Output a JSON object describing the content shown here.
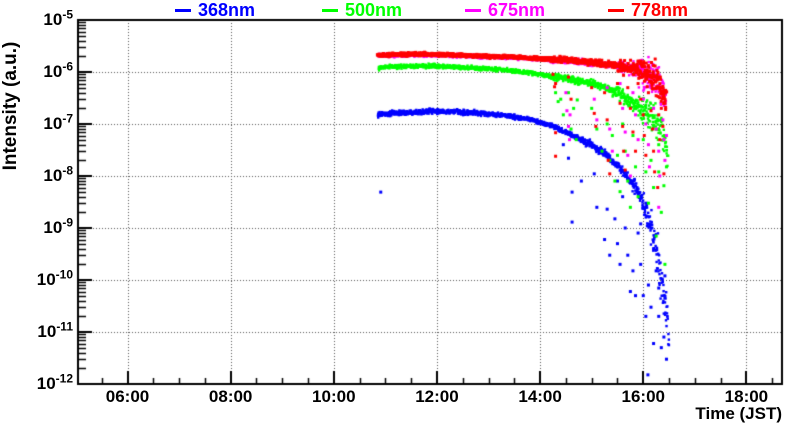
{
  "chart_data": {
    "type": "scatter",
    "title": "",
    "xlabel": "Time (JST)",
    "ylabel": "Intensity (a.u.)",
    "xlim_hours": [
      5.04,
      18.69
    ],
    "yscale": "log",
    "ylim": [
      1e-12,
      1e-05
    ],
    "grid": {
      "show": true,
      "style": "dotted",
      "color": "#555555"
    },
    "xticks": {
      "major_hours": [
        6,
        8,
        10,
        12,
        14,
        16,
        18
      ],
      "labels": [
        "06:00",
        "08:00",
        "10:00",
        "12:00",
        "14:00",
        "16:00",
        "18:00"
      ],
      "minor_step_hours": 0.5
    },
    "yticks": {
      "base": "10",
      "exponents": [
        -5,
        -6,
        -7,
        -8,
        -9,
        -10,
        -11,
        -12
      ]
    },
    "legend": {
      "position": "top",
      "entries": [
        {
          "label": "368nm",
          "color": "#0000ff"
        },
        {
          "label": "500nm",
          "color": "#00ff00"
        },
        {
          "label": "675nm",
          "color": "#ff00ff"
        },
        {
          "label": "778nm",
          "color": "#ff0000"
        }
      ]
    },
    "series": [
      {
        "name": "368nm",
        "color": "#0000ff",
        "curve": [
          [
            10.85,
            1.5e-07
          ],
          [
            11.2,
            1.62e-07
          ],
          [
            11.8,
            1.75e-07
          ],
          [
            12.3,
            1.72e-07
          ],
          [
            12.8,
            1.62e-07
          ],
          [
            13.3,
            1.47e-07
          ],
          [
            13.8,
            1.22e-07
          ],
          [
            14.2,
            9.5e-08
          ],
          [
            14.6,
            6.2e-08
          ],
          [
            15.0,
            4e-08
          ],
          [
            15.3,
            2.5e-08
          ],
          [
            15.6,
            1.25e-08
          ],
          [
            15.85,
            6e-09
          ],
          [
            16.0,
            3e-09
          ],
          [
            16.1,
            1.5e-09
          ],
          [
            16.2,
            6e-10
          ],
          [
            16.3,
            2e-10
          ],
          [
            16.38,
            7e-11
          ],
          [
            16.45,
            2e-11
          ],
          [
            16.5,
            6e-12
          ]
        ],
        "noise_log_sigma": [
          [
            0,
            0.022
          ],
          [
            14.8,
            0.035
          ],
          [
            15.8,
            0.07
          ],
          [
            16.0,
            0.12
          ],
          [
            16.15,
            0.2
          ]
        ],
        "scatter": [
          [
            10.91,
            4.9e-09
          ],
          [
            14.45,
            4e-08
          ],
          [
            14.55,
            2.2e-08
          ],
          [
            14.62,
            4.9e-09
          ],
          [
            14.62,
            1.3e-09
          ],
          [
            14.8,
            8e-09
          ],
          [
            15.05,
            1.1e-08
          ],
          [
            15.1,
            2.5e-09
          ],
          [
            15.25,
            6e-10
          ],
          [
            15.3,
            2.3e-09
          ],
          [
            15.35,
            3e-10
          ],
          [
            15.45,
            1.5e-09
          ],
          [
            15.5,
            8e-09
          ],
          [
            15.5,
            5e-10
          ],
          [
            15.55,
            2e-10
          ],
          [
            15.6,
            4e-09
          ],
          [
            15.65,
            1e-09
          ],
          [
            15.7,
            3e-10
          ],
          [
            15.75,
            6e-11
          ],
          [
            15.8,
            1.5e-10
          ],
          [
            15.85,
            5e-11
          ],
          [
            15.9,
            8e-10
          ],
          [
            15.95,
            1.2e-09
          ],
          [
            15.95,
            2e-10
          ],
          [
            16.0,
            5e-11
          ],
          [
            16.05,
            3e-09
          ],
          [
            16.05,
            2e-11
          ],
          [
            16.09,
            1.5e-12
          ],
          [
            16.1,
            8e-11
          ],
          [
            16.15,
            1e-09
          ],
          [
            16.15,
            3e-11
          ],
          [
            16.2,
            4e-10
          ],
          [
            16.2,
            6e-12
          ],
          [
            16.25,
            1.5e-10
          ],
          [
            16.3,
            7e-11
          ],
          [
            16.3,
            2e-11
          ],
          [
            16.35,
            5e-12
          ],
          [
            16.4,
            8e-12
          ],
          [
            16.42,
            1.2e-10
          ],
          [
            16.45,
            3e-12
          ]
        ]
      },
      {
        "name": "500nm",
        "color": "#00ff00",
        "curve": [
          [
            10.87,
            1.2e-06
          ],
          [
            11.3,
            1.28e-06
          ],
          [
            11.9,
            1.3e-06
          ],
          [
            12.4,
            1.25e-06
          ],
          [
            13.0,
            1.15e-06
          ],
          [
            13.5,
            1.05e-06
          ],
          [
            14.0,
            9e-07
          ],
          [
            14.5,
            7.5e-07
          ],
          [
            15.0,
            6e-07
          ],
          [
            15.3,
            4.9e-07
          ],
          [
            15.6,
            3.5e-07
          ],
          [
            15.9,
            2.2e-07
          ],
          [
            16.1,
            1.55e-07
          ],
          [
            16.3,
            9.5e-08
          ],
          [
            16.42,
            5e-08
          ],
          [
            16.48,
            2e-08
          ]
        ],
        "noise_log_sigma": [
          [
            0,
            0.018
          ],
          [
            14.2,
            0.03
          ],
          [
            15.4,
            0.06
          ],
          [
            15.9,
            0.13
          ]
        ],
        "scatter": [
          [
            14.3,
            4e-07
          ],
          [
            14.35,
            2.7e-07
          ],
          [
            14.4,
            3e-07
          ],
          [
            14.45,
            1.5e-07
          ],
          [
            14.55,
            4e-07
          ],
          [
            14.6,
            8e-08
          ],
          [
            14.65,
            2e-07
          ],
          [
            14.7,
            5e-08
          ],
          [
            14.72,
            2.9e-07
          ],
          [
            15.0,
            2e-07
          ],
          [
            15.1,
            8e-08
          ],
          [
            15.2,
            3e-08
          ],
          [
            15.3,
            1e-07
          ],
          [
            15.35,
            2e-08
          ],
          [
            15.4,
            6e-08
          ],
          [
            15.45,
            8e-09
          ],
          [
            15.5,
            2.5e-08
          ],
          [
            15.55,
            5e-09
          ],
          [
            15.6,
            1e-07
          ],
          [
            15.65,
            3e-08
          ],
          [
            15.7,
            8e-09
          ],
          [
            15.75,
            2.5e-09
          ],
          [
            15.8,
            6e-08
          ],
          [
            15.85,
            1.5e-08
          ],
          [
            15.9,
            4e-09
          ],
          [
            16.0,
            5e-08
          ],
          [
            16.05,
            1.2e-08
          ],
          [
            16.1,
            3e-09
          ],
          [
            16.15,
            2e-08
          ],
          [
            16.2,
            6e-09
          ],
          [
            16.25,
            7e-10
          ],
          [
            16.3,
            4e-08
          ],
          [
            16.3,
            1.2e-08
          ],
          [
            16.35,
            2e-09
          ],
          [
            16.4,
            6.5e-09
          ],
          [
            16.42,
            2e-10
          ],
          [
            16.45,
            1.5e-08
          ]
        ]
      },
      {
        "name": "675nm",
        "color": "#ff00ff",
        "curve": [
          [
            10.85,
            2.05e-06
          ],
          [
            11.5,
            2.14e-06
          ],
          [
            12.0,
            2.12e-06
          ],
          [
            12.5,
            2.05e-06
          ],
          [
            13.0,
            1.95e-06
          ],
          [
            13.5,
            1.87e-06
          ],
          [
            14.0,
            1.77e-06
          ],
          [
            14.5,
            1.65e-06
          ],
          [
            15.0,
            1.5e-06
          ],
          [
            15.3,
            1.38e-06
          ],
          [
            15.6,
            1.24e-06
          ],
          [
            15.9,
            1.07e-06
          ],
          [
            16.1,
            8.7e-07
          ],
          [
            16.25,
            6.8e-07
          ],
          [
            16.38,
            4.4e-07
          ],
          [
            16.45,
            2.7e-07
          ]
        ],
        "noise_log_sigma": [
          [
            0,
            0.015
          ],
          [
            14.2,
            0.025
          ],
          [
            15.5,
            0.06
          ],
          [
            15.9,
            0.15
          ]
        ],
        "scatter": [
          [
            14.5,
            4e-07
          ],
          [
            14.52,
            1.8e-07
          ],
          [
            14.55,
            9e-08
          ],
          [
            14.57,
            5e-08
          ],
          [
            14.58,
            1.5e-07
          ],
          [
            15.05,
            3e-07
          ],
          [
            15.1,
            1.2e-07
          ],
          [
            15.3,
            5e-07
          ],
          [
            15.35,
            8e-08
          ],
          [
            15.4,
            3e-08
          ],
          [
            15.55,
            6e-07
          ],
          [
            15.6,
            2e-07
          ],
          [
            15.65,
            7e-08
          ],
          [
            15.7,
            2.5e-08
          ],
          [
            15.75,
            1e-08
          ],
          [
            15.8,
            4e-07
          ],
          [
            15.85,
            1.5e-07
          ],
          [
            15.9,
            5e-08
          ],
          [
            15.95,
            9e-07
          ],
          [
            16.0,
            3e-07
          ],
          [
            16.05,
            1e-07
          ],
          [
            16.1,
            4e-08
          ],
          [
            16.12,
            1.5e-08
          ],
          [
            16.15,
            5e-07
          ],
          [
            16.2,
            2e-07
          ],
          [
            16.25,
            8e-08
          ],
          [
            16.3,
            3e-08
          ],
          [
            16.3,
            2.5e-09
          ],
          [
            16.32,
            1e-08
          ],
          [
            16.35,
            4e-07
          ],
          [
            16.38,
            1.2e-07
          ],
          [
            16.4,
            5e-08
          ],
          [
            16.42,
            2e-08
          ],
          [
            16.45,
            6e-08
          ]
        ]
      },
      {
        "name": "778nm",
        "color": "#ff0000",
        "curve": [
          [
            10.85,
            2.1e-06
          ],
          [
            11.5,
            2.2e-06
          ],
          [
            12.0,
            2.18e-06
          ],
          [
            12.5,
            2.1e-06
          ],
          [
            13.0,
            2e-06
          ],
          [
            13.5,
            1.92e-06
          ],
          [
            14.0,
            1.82e-06
          ],
          [
            14.5,
            1.7e-06
          ],
          [
            15.0,
            1.55e-06
          ],
          [
            15.3,
            1.42e-06
          ],
          [
            15.6,
            1.28e-06
          ],
          [
            15.9,
            1.1e-06
          ],
          [
            16.1,
            9e-07
          ],
          [
            16.25,
            7e-07
          ],
          [
            16.38,
            4.5e-07
          ],
          [
            16.45,
            2.8e-07
          ]
        ],
        "noise_log_sigma": [
          [
            0,
            0.015
          ],
          [
            14.2,
            0.025
          ],
          [
            15.5,
            0.06
          ],
          [
            15.9,
            0.15
          ]
        ],
        "scatter": [
          [
            14.25,
            9e-07
          ],
          [
            14.28,
            5.2e-07
          ],
          [
            14.3,
            6e-07
          ],
          [
            14.3,
            6.8e-08
          ],
          [
            14.3,
            2.4e-08
          ],
          [
            14.55,
            8e-07
          ],
          [
            14.6,
            3e-07
          ],
          [
            15.0,
            5e-07
          ],
          [
            15.05,
            1.6e-07
          ],
          [
            15.08,
            9e-08
          ],
          [
            15.25,
            4e-07
          ],
          [
            15.3,
            1.2e-07
          ],
          [
            15.32,
            2e-08
          ],
          [
            15.35,
            1.1e-08
          ],
          [
            15.5,
            6e-07
          ],
          [
            15.55,
            2.5e-07
          ],
          [
            15.6,
            9e-08
          ],
          [
            15.62,
            3e-08
          ],
          [
            15.65,
            1.3e-08
          ],
          [
            15.7,
            5e-07
          ],
          [
            15.75,
            2e-07
          ],
          [
            15.8,
            7e-08
          ],
          [
            15.85,
            3e-08
          ],
          [
            15.9,
            6e-07
          ],
          [
            15.95,
            3e-07
          ],
          [
            16.0,
            1.5e-07
          ],
          [
            16.02,
            6e-08
          ],
          [
            16.05,
            2.5e-08
          ],
          [
            16.1,
            4e-07
          ],
          [
            16.15,
            1.8e-07
          ],
          [
            16.18,
            8e-08
          ],
          [
            16.2,
            3e-08
          ],
          [
            16.22,
            1.2e-08
          ],
          [
            16.25,
            3.5e-07
          ],
          [
            16.28,
            6e-09
          ],
          [
            16.3,
            1.5e-07
          ],
          [
            16.32,
            5e-08
          ],
          [
            16.35,
            2e-07
          ],
          [
            16.38,
            9e-08
          ],
          [
            16.4,
            1.1e-08
          ],
          [
            16.42,
            2.5e-07
          ]
        ]
      }
    ]
  }
}
